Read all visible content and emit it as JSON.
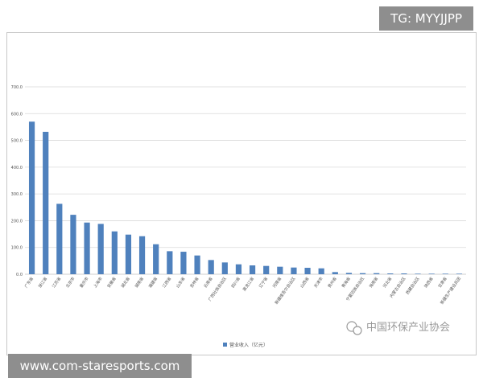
{
  "overlays": {
    "tg_label": "TG: MYYJJPP",
    "site_label": "www.com-staresports.com",
    "watermark_text": "中国环保产业协会"
  },
  "chart_data": {
    "type": "bar",
    "title": "",
    "xlabel": "",
    "ylabel": "",
    "ylim": [
      0,
      700
    ],
    "yticks": [
      "0.0",
      "100.0",
      "200.0",
      "300.0",
      "400.0",
      "500.0",
      "600.0",
      "700.0"
    ],
    "grid": true,
    "legend_position": "bottom",
    "bar_color": "#4f81bd",
    "categories": [
      "广东省",
      "浙江省",
      "江苏省",
      "北京市",
      "重庆市",
      "上海市",
      "安徽省",
      "湖北省",
      "湖南省",
      "福建省",
      "江西省",
      "山东省",
      "吉林省",
      "云南省",
      "广西壮族自治区",
      "四川省",
      "黑龙江省",
      "辽宁省",
      "河南省",
      "新疆维吾尔自治区",
      "山西省",
      "天津市",
      "贵州省",
      "青海省",
      "宁夏回族自治区",
      "海南省",
      "河北省",
      "内蒙古自治区",
      "西藏自治区",
      "陕西省",
      "甘肃省",
      "新疆生产建设兵团"
    ],
    "series": [
      {
        "name": "营业收入（亿元）",
        "values": [
          570,
          532,
          263,
          222,
          193,
          188,
          160,
          148,
          142,
          112,
          86,
          84,
          70,
          53,
          44,
          37,
          33,
          31,
          28,
          25,
          24,
          22,
          8,
          5,
          4,
          4,
          3,
          3,
          2,
          2,
          2,
          2
        ]
      }
    ]
  }
}
